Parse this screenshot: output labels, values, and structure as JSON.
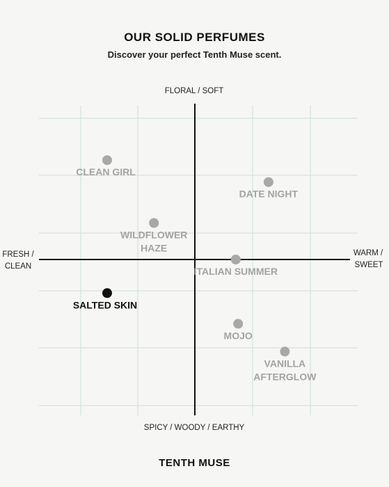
{
  "header": {
    "title": "OUR SOLID PERFUMES",
    "subtitle": "Discover your perfect Tenth Muse scent."
  },
  "footer": {
    "brand": "TENTH MUSE"
  },
  "axes": {
    "top": "FLORAL / SOFT",
    "bottom": "SPICY / WOODY / EARTHY",
    "left_line1": "FRESH /",
    "left_line2": "CLEAN",
    "right_line1": "WARM /",
    "right_line2": "SWEET"
  },
  "colors": {
    "grid": "#d3e3df",
    "axis": "#111111",
    "point_inactive": "#a8a8a8",
    "label_inactive": "#a3a3a3",
    "point_active": "#111111",
    "label_active": "#111111",
    "background": "#f6f6f5"
  },
  "chart_data": {
    "type": "scatter",
    "xlim": [
      -100,
      100
    ],
    "ylim": [
      -100,
      100
    ],
    "grid": true,
    "points": [
      {
        "name": "clean-girl",
        "lines": [
          "CLEAN GIRL"
        ],
        "x": -75,
        "y": 68,
        "active": false
      },
      {
        "name": "date-night",
        "lines": [
          "DATE NIGHT"
        ],
        "x": 63,
        "y": 53,
        "active": false
      },
      {
        "name": "wildflower-haze",
        "lines": [
          "WILDFLOWER",
          "HAZE"
        ],
        "x": -35,
        "y": 25,
        "active": false
      },
      {
        "name": "italian-summer",
        "lines": [
          "ITALIAN SUMMER"
        ],
        "x": 35,
        "y": 0,
        "active": false
      },
      {
        "name": "salted-skin",
        "lines": [
          "SALTED SKIN"
        ],
        "x": -75,
        "y": -23,
        "active": true
      },
      {
        "name": "mojo",
        "lines": [
          "MOJO"
        ],
        "x": 37,
        "y": -44,
        "active": false
      },
      {
        "name": "vanilla-afterglow",
        "lines": [
          "VANILLA",
          "AFTERGLOW"
        ],
        "x": 77,
        "y": -63,
        "active": false
      }
    ]
  }
}
